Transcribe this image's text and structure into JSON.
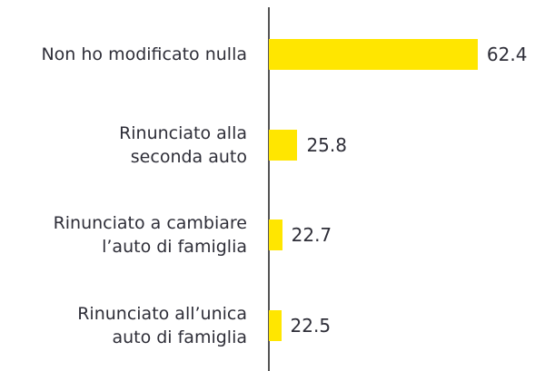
{
  "chart_data": {
    "type": "bar",
    "orientation": "horizontal",
    "categories": [
      "Non ho modificato nulla",
      "Rinunciato alla\nseconda auto",
      "Rinunciato a cambiare\nl’auto di famiglia",
      "Rinunciato all’unica\nauto di famiglia"
    ],
    "values": [
      62.4,
      25.8,
      22.7,
      22.5
    ],
    "color": "#ffe600",
    "xlim": [
      20,
      65
    ]
  }
}
